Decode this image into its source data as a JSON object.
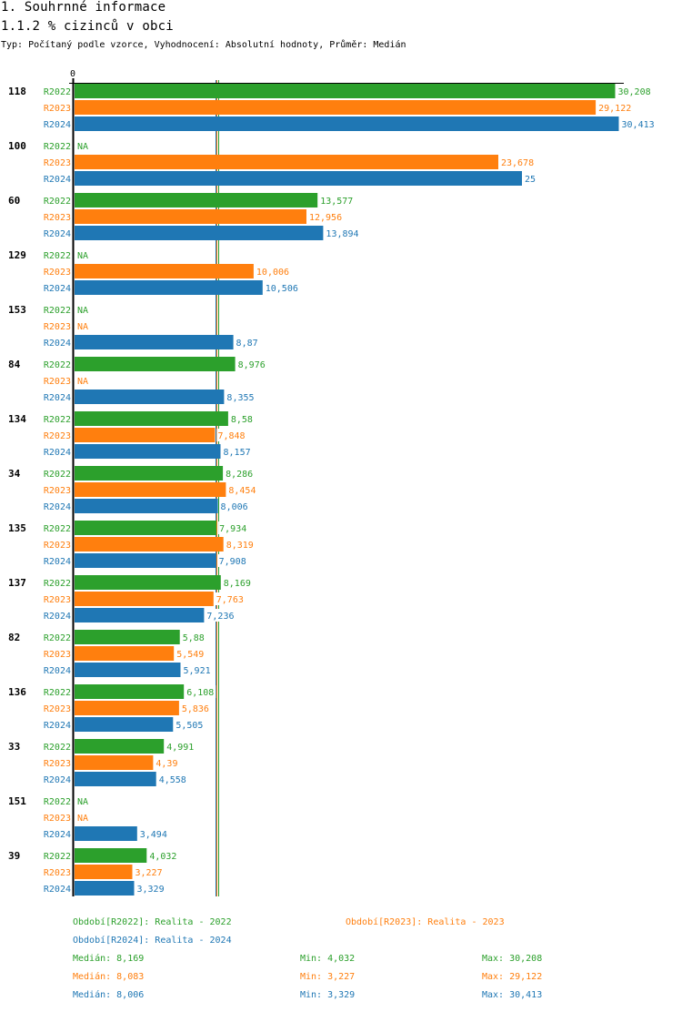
{
  "header": {
    "title": "1. Souhrnné informace",
    "subtitle": "1.1.2 % cizinců v obci",
    "description": "Typ: Počítaný podle vzorce, Vyhodnocení: Absolutní hodnoty, Průměr: Medián"
  },
  "colors": {
    "R2022": "#2ca02c",
    "R2023": "#ff7f0e",
    "R2024": "#1f77b4"
  },
  "chart_data": {
    "type": "bar",
    "orientation": "horizontal",
    "title": "1.1.2 % cizinců v obci",
    "xlabel": "",
    "ylabel": "",
    "x_tick_labels": [
      "0"
    ],
    "xlim": [
      0,
      30.413
    ],
    "grid": false,
    "categories": [
      "118",
      "100",
      "60",
      "129",
      "153",
      "84",
      "134",
      "34",
      "135",
      "137",
      "82",
      "136",
      "33",
      "151",
      "39"
    ],
    "series": [
      {
        "name": "R2022",
        "display_values": [
          "30,208",
          "NA",
          "13,577",
          "NA",
          "NA",
          "8,976",
          "8,58",
          "8,286",
          "7,934",
          "8,169",
          "5,88",
          "6,108",
          "4,991",
          "NA",
          "4,032"
        ],
        "values": [
          30.208,
          null,
          13.577,
          null,
          null,
          8.976,
          8.58,
          8.286,
          7.934,
          8.169,
          5.88,
          6.108,
          4.991,
          null,
          4.032
        ]
      },
      {
        "name": "R2023",
        "display_values": [
          "29,122",
          "23,678",
          "12,956",
          "10,006",
          "NA",
          "NA",
          "7,848",
          "8,454",
          "8,319",
          "7,763",
          "5,549",
          "5,836",
          "4,39",
          "NA",
          "3,227"
        ],
        "values": [
          29.122,
          23.678,
          12.956,
          10.006,
          null,
          null,
          7.848,
          8.454,
          8.319,
          7.763,
          5.549,
          5.836,
          4.39,
          null,
          3.227
        ]
      },
      {
        "name": "R2024",
        "display_values": [
          "30,413",
          "25",
          "13,894",
          "10,506",
          "8,87",
          "8,355",
          "8,157",
          "8,006",
          "7,908",
          "7,236",
          "5,921",
          "5,505",
          "4,558",
          "3,494",
          "3,329"
        ],
        "values": [
          30.413,
          25,
          13.894,
          10.506,
          8.87,
          8.355,
          8.157,
          8.006,
          7.908,
          7.236,
          5.921,
          5.505,
          4.558,
          3.494,
          3.329
        ]
      }
    ],
    "median_lines": [
      {
        "series": "R2024",
        "value": 8.006
      },
      {
        "series": "R2023",
        "value": 8.083
      },
      {
        "series": "R2022",
        "value": 8.169
      }
    ],
    "legend": [
      {
        "series": "R2022",
        "label": "Období[R2022]: Realita - 2022"
      },
      {
        "series": "R2023",
        "label": "Období[R2023]: Realita - 2023"
      },
      {
        "series": "R2024",
        "label": "Období[R2024]: Realita - 2024"
      }
    ],
    "legend_position": "bottom",
    "stats": [
      {
        "series": "R2022",
        "median": "Medián: 8,169",
        "min": "Min: 4,032",
        "max": "Max: 30,208"
      },
      {
        "series": "R2023",
        "median": "Medián: 8,083",
        "min": "Min: 3,227",
        "max": "Max: 29,122"
      },
      {
        "series": "R2024",
        "median": "Medián: 8,006",
        "min": "Min: 3,329",
        "max": "Max: 30,413"
      }
    ]
  }
}
